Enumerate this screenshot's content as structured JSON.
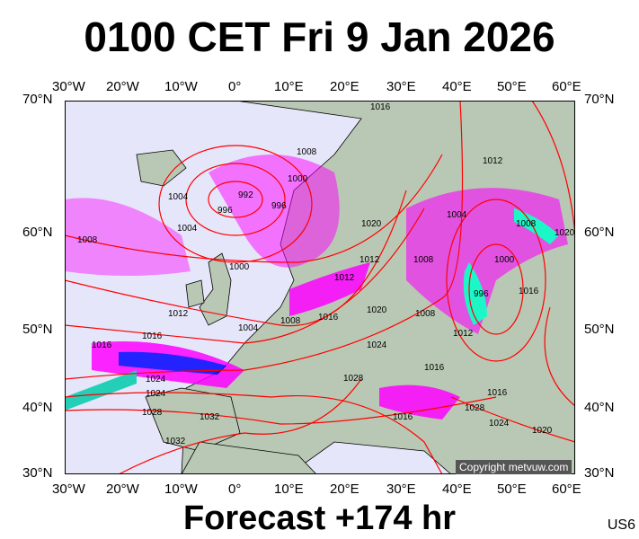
{
  "title": "0100 CET Fri 9 Jan 2026",
  "footer": "Forecast +174 hr",
  "model_code": "US6",
  "copyright": "Copyright metvuw.com",
  "longitude_labels": [
    "30°W",
    "20°W",
    "10°W",
    "0°",
    "10°E",
    "20°E",
    "30°E",
    "40°E",
    "50°E",
    "60°E"
  ],
  "latitude_labels": [
    "70°N",
    "60°N",
    "50°N",
    "40°N",
    "30°N"
  ],
  "isobar_labels": [
    "1016",
    "1004",
    "992",
    "996",
    "996",
    "1000",
    "1004",
    "1008",
    "1008",
    "1000",
    "1012",
    "1016",
    "1004",
    "1008",
    "1016",
    "1020",
    "1008",
    "1012",
    "1004",
    "1012",
    "1008",
    "1000",
    "996",
    "1012",
    "1016",
    "1020",
    "1024",
    "1024",
    "1028",
    "1028",
    "1020",
    "1024",
    "1016",
    "1032",
    "1032",
    "1028",
    "1016",
    "1024",
    "1020",
    "1016",
    "1012",
    "1008",
    "1016"
  ],
  "colors": {
    "ocean": "#e6e6fa",
    "land": "#b9c8b4",
    "isobar": "#ff0000",
    "precip_light": "#ff00ff",
    "precip_heavy": "#0000ff",
    "precip_extreme": "#00ffcc"
  }
}
